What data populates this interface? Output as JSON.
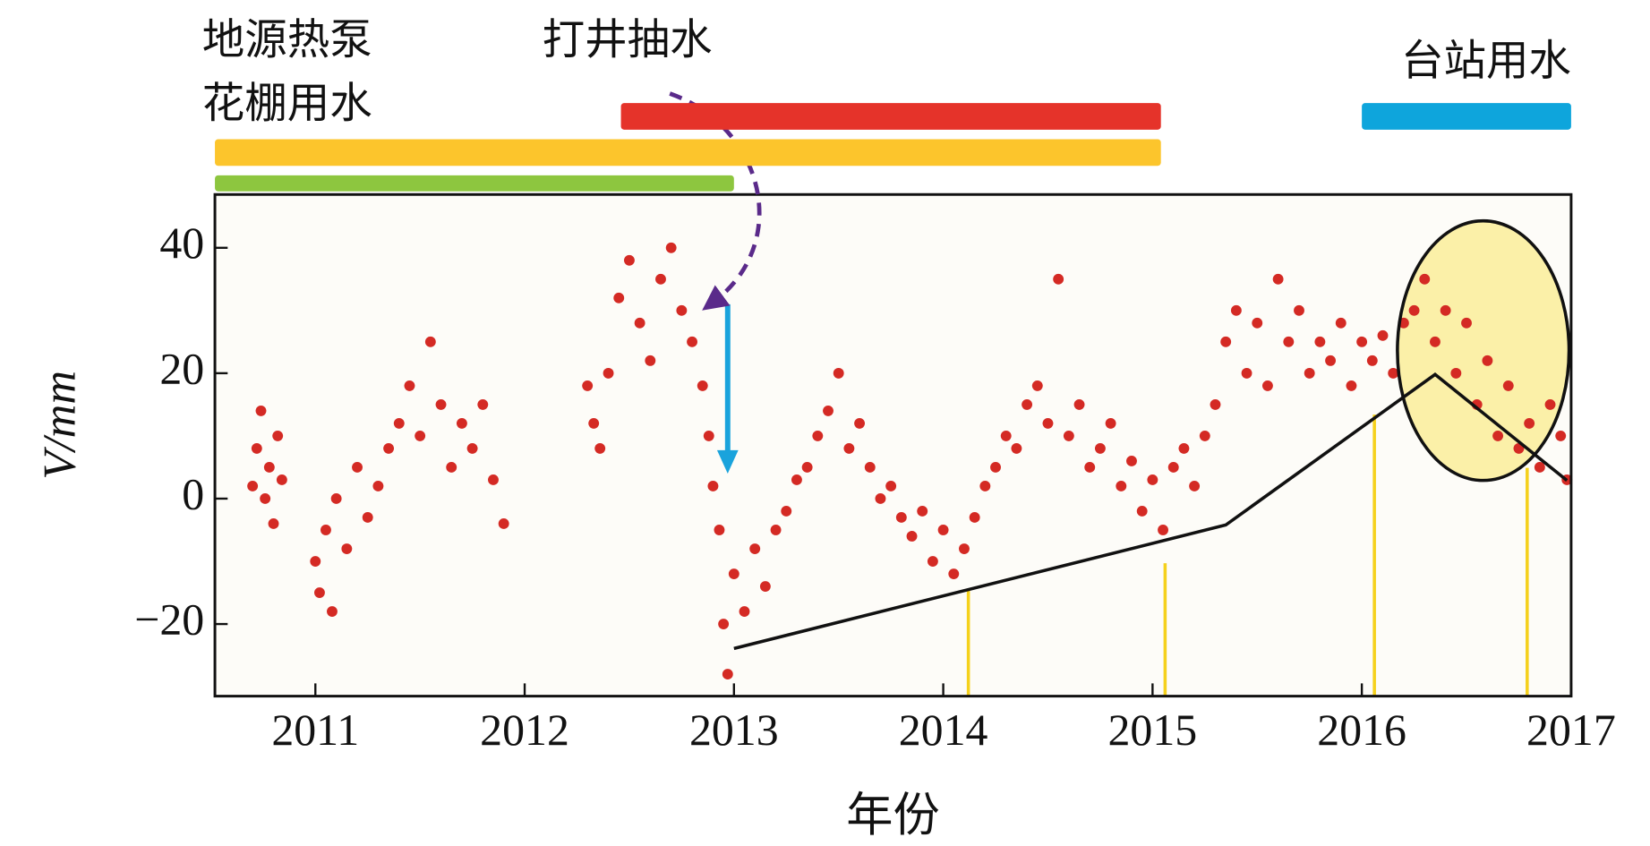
{
  "chart_data": {
    "type": "scatter",
    "xlabel": "年份",
    "ylabel": "V/mm",
    "xlim": [
      2010.52,
      2017
    ],
    "ylim": [
      -31.5,
      48.5
    ],
    "xticks": [
      2011,
      2012,
      2013,
      2014,
      2015,
      2016,
      2017
    ],
    "yticks": [
      {
        "value": -20,
        "label": "−20"
      },
      0,
      20,
      40
    ],
    "series": [
      {
        "color": "#d42a24",
        "x": [
          2010.7,
          2010.72,
          2010.74,
          2010.76,
          2010.78,
          2010.8,
          2010.82,
          2010.84,
          2011.0,
          2011.02,
          2011.05,
          2011.08,
          2011.1,
          2011.15,
          2011.2,
          2011.25,
          2011.3,
          2011.35,
          2011.4,
          2011.45,
          2011.5,
          2011.55,
          2011.6,
          2011.65,
          2011.7,
          2011.75,
          2011.8,
          2011.85,
          2011.9,
          2012.3,
          2012.33,
          2012.36,
          2012.4,
          2012.45,
          2012.5,
          2012.55,
          2012.6,
          2012.65,
          2012.7,
          2012.75,
          2012.8,
          2012.85,
          2012.88,
          2012.9,
          2012.93,
          2012.95,
          2012.97,
          2013.0,
          2013.05,
          2013.1,
          2013.15,
          2013.2,
          2013.25,
          2013.3,
          2013.35,
          2013.4,
          2013.45,
          2013.5,
          2013.55,
          2013.6,
          2013.65,
          2013.7,
          2013.75,
          2013.8,
          2013.85,
          2013.9,
          2013.95,
          2014.0,
          2014.05,
          2014.1,
          2014.15,
          2014.2,
          2014.25,
          2014.3,
          2014.35,
          2014.4,
          2014.45,
          2014.5,
          2014.55,
          2014.6,
          2014.65,
          2014.7,
          2014.75,
          2014.8,
          2014.85,
          2014.9,
          2014.95,
          2015.0,
          2015.05,
          2015.1,
          2015.15,
          2015.2,
          2015.25,
          2015.3,
          2015.35,
          2015.4,
          2015.45,
          2015.5,
          2015.55,
          2015.6,
          2015.65,
          2015.7,
          2015.75,
          2015.8,
          2015.85,
          2015.9,
          2015.95,
          2016.0,
          2016.05,
          2016.1,
          2016.15,
          2016.2,
          2016.25,
          2016.3,
          2016.35,
          2016.4,
          2016.45,
          2016.5,
          2016.55,
          2016.6,
          2016.65,
          2016.7,
          2016.75,
          2016.8,
          2016.85,
          2016.9,
          2016.95,
          2016.98
        ],
        "values": [
          2,
          8,
          14,
          0,
          5,
          -4,
          10,
          3,
          -10,
          -15,
          -5,
          -18,
          0,
          -8,
          5,
          -3,
          2,
          8,
          12,
          18,
          10,
          25,
          15,
          5,
          12,
          8,
          15,
          3,
          -4,
          18,
          12,
          8,
          20,
          32,
          38,
          28,
          22,
          35,
          40,
          30,
          25,
          18,
          10,
          2,
          -5,
          -20,
          -28,
          -12,
          -18,
          -8,
          -14,
          -5,
          -2,
          3,
          5,
          10,
          14,
          20,
          8,
          12,
          5,
          0,
          2,
          -3,
          -6,
          -2,
          -10,
          -5,
          -12,
          -8,
          -3,
          2,
          5,
          10,
          8,
          15,
          18,
          12,
          35,
          10,
          15,
          5,
          8,
          12,
          2,
          6,
          -2,
          3,
          -5,
          5,
          8,
          2,
          10,
          15,
          25,
          30,
          20,
          28,
          18,
          35,
          25,
          30,
          20,
          25,
          22,
          28,
          18,
          25,
          22,
          26,
          20,
          28,
          30,
          35,
          25,
          30,
          20,
          28,
          15,
          22,
          10,
          18,
          8,
          12,
          5,
          15,
          10,
          3
        ]
      }
    ],
    "periods": [
      {
        "label": "打井抽水",
        "start": 2012.46,
        "end": 2015.04,
        "color": "#e5332a"
      },
      {
        "label": "地源热泵",
        "start": 2010.52,
        "end": 2015.04,
        "color": "#fcc52c"
      },
      {
        "label": "花棚用水",
        "start": 2010.52,
        "end": 2013.0,
        "color": "#8dc63f"
      },
      {
        "label": "台站用水",
        "start": 2016.0,
        "end": 2017,
        "color": "#0ea5dc"
      }
    ],
    "trend": {
      "color": "#111111",
      "x": [
        2013.0,
        2015.35,
        2016.35,
        2016.98
      ],
      "values": [
        -23.9,
        -4.2,
        19.8,
        2.9
      ]
    },
    "event_lines": {
      "color": "#f5d11c",
      "x": [
        2014.12,
        2015.06,
        2016.06,
        2016.79
      ],
      "values": [
        -14.6,
        -10.3,
        13.4,
        4.9
      ]
    },
    "ellipse": {
      "x": 2016.58,
      "y": 23.6,
      "rx": 0.41,
      "ry": 20.7,
      "color": "#fbf0a8"
    },
    "arrow": {
      "x": 2012.97,
      "from": 31,
      "to": 4,
      "color": "#1aa3dc"
    }
  }
}
